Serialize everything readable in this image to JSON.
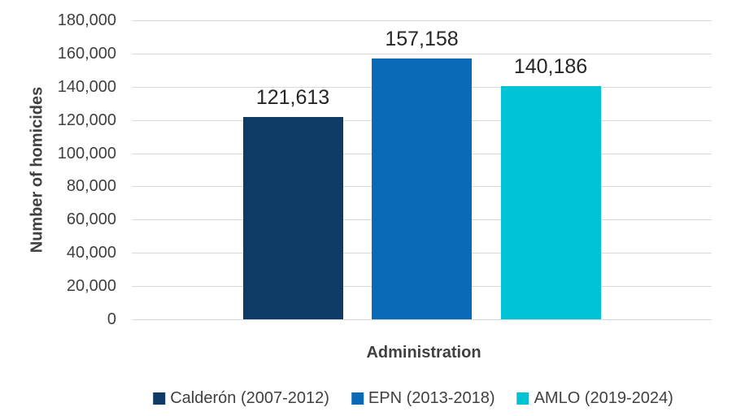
{
  "chart_data": {
    "type": "bar",
    "title": "",
    "xlabel": "Administration",
    "ylabel": "Number of homicides",
    "categories": [
      "Calderón (2007-2012)",
      "EPN (2013-2018)",
      "AMLO (2019-2024)"
    ],
    "values": [
      121613,
      157158,
      140186
    ],
    "value_labels": [
      "121,613",
      "157,158",
      "140,186"
    ],
    "bar_colors": [
      "#0e3a66",
      "#0b6ab8",
      "#00c4d6"
    ],
    "ylim": [
      0,
      180000
    ],
    "ytick_step": 20000,
    "ytick_labels": [
      "0",
      "20,000",
      "40,000",
      "60,000",
      "80,000",
      "100,000",
      "120,000",
      "140,000",
      "160,000",
      "180,000"
    ],
    "grid": "horizontal",
    "legend_position": "bottom",
    "legend": [
      {
        "label": "Calderón (2007-2012)",
        "color": "#0e3a66"
      },
      {
        "label": "EPN (2013-2018)",
        "color": "#0b6ab8"
      },
      {
        "label": "AMLO (2019-2024)",
        "color": "#00c4d6"
      }
    ],
    "colors": {
      "gridline": "#d9d9d9",
      "axis_text": "#404040",
      "data_label": "#262626",
      "background": "#ffffff"
    }
  }
}
